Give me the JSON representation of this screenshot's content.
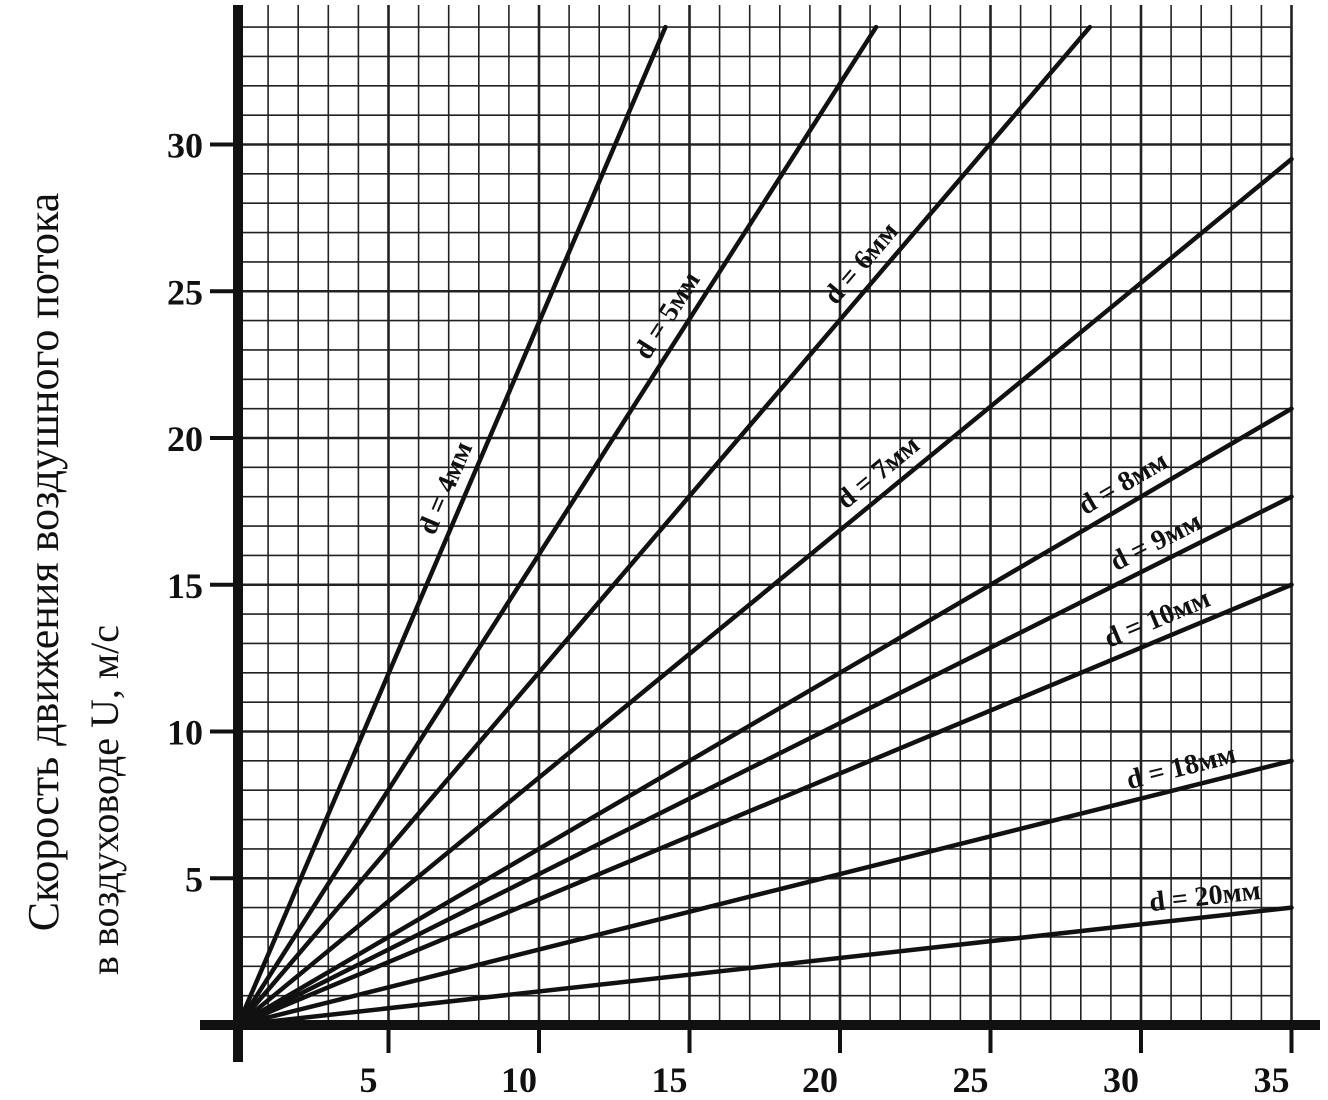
{
  "chart_data": {
    "type": "line",
    "title": "",
    "ylabel_line1": "Скорость движения воздушного потока",
    "ylabel_line2": "в воздуховоде U, м/с",
    "xlabel": "",
    "xlim": [
      0,
      35
    ],
    "ylim": [
      0,
      34
    ],
    "xticks": [
      "5",
      "10",
      "15",
      "20",
      "25",
      "30",
      "35"
    ],
    "yticks": [
      "5",
      "10",
      "15",
      "20",
      "25",
      "30"
    ],
    "grid": true,
    "series": [
      {
        "name": "d = 4мм",
        "x": [
          0,
          14.2
        ],
        "y": [
          0,
          34
        ]
      },
      {
        "name": "d = 5мм",
        "x": [
          0,
          21.2
        ],
        "y": [
          0,
          34
        ]
      },
      {
        "name": "d = 6мм",
        "x": [
          0,
          28.3
        ],
        "y": [
          0,
          34
        ]
      },
      {
        "name": "d = 7мм",
        "x": [
          0,
          35
        ],
        "y": [
          0,
          29.5
        ]
      },
      {
        "name": "d = 8мм",
        "x": [
          0,
          35
        ],
        "y": [
          0,
          21
        ]
      },
      {
        "name": "d = 9мм",
        "x": [
          0,
          35
        ],
        "y": [
          0,
          18
        ]
      },
      {
        "name": "d = 10мм",
        "x": [
          0,
          35
        ],
        "y": [
          0,
          15
        ]
      },
      {
        "name": "d = 18мм",
        "x": [
          0,
          35
        ],
        "y": [
          0,
          9
        ]
      },
      {
        "name": "d = 20мм",
        "x": [
          0,
          35
        ],
        "y": [
          0,
          4
        ]
      }
    ]
  }
}
